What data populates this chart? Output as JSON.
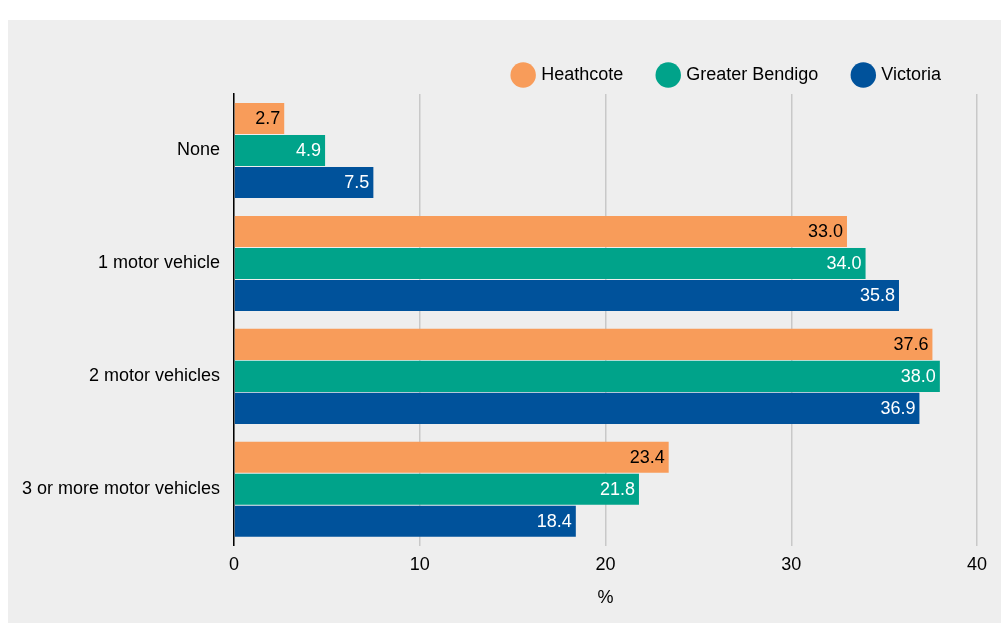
{
  "chart_data": {
    "type": "bar",
    "orientation": "horizontal",
    "xlabel": "%",
    "categories": [
      "None",
      "1 motor vehicle",
      "2 motor vehicles",
      "3 or more motor vehicles"
    ],
    "series": [
      {
        "name": "Heathcote",
        "color": "#f89c5a",
        "values": [
          2.7,
          33.0,
          37.6,
          23.4
        ],
        "value_labels": [
          "2.7",
          "33.0",
          "37.6",
          "23.4"
        ]
      },
      {
        "name": "Greater Bendigo",
        "color": "#00a38a",
        "values": [
          4.9,
          34.0,
          38.0,
          21.8
        ],
        "value_labels": [
          "4.9",
          "34.0",
          "38.0",
          "21.8"
        ]
      },
      {
        "name": "Victoria",
        "color": "#00529b",
        "values": [
          7.5,
          35.8,
          36.9,
          18.4
        ],
        "value_labels": [
          "7.5",
          "35.8",
          "36.9",
          "18.4"
        ]
      }
    ],
    "xlim": [
      0,
      40
    ],
    "xticks": [
      0,
      10,
      20,
      30,
      40
    ],
    "grid": "x",
    "legend": "top right"
  }
}
